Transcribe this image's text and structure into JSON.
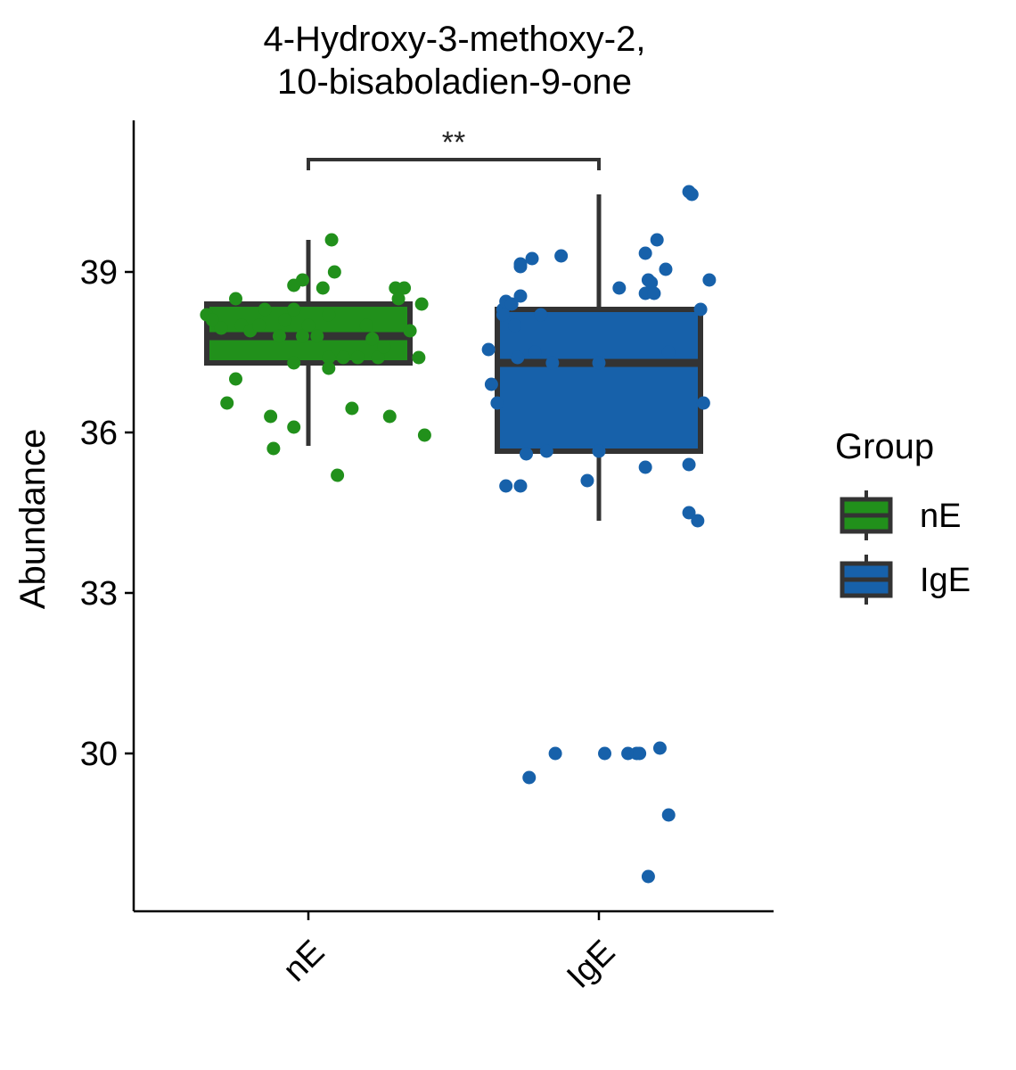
{
  "chart_data": {
    "type": "box",
    "title_lines": [
      "4-Hydroxy-3-methoxy-2,",
      "10-bisaboladien-9-one"
    ],
    "ylabel": "Abundance",
    "xlabel": "",
    "categories": [
      "nE",
      "IgE"
    ],
    "y_ticks": [
      30,
      33,
      36,
      39
    ],
    "ylim": [
      27.0,
      41.75
    ],
    "legend": {
      "title": "Group",
      "placement": "right",
      "entries": [
        {
          "label": "nE",
          "color": "#21901b"
        },
        {
          "label": "IgE",
          "color": "#1761aa"
        }
      ]
    },
    "significance": {
      "label": "**",
      "between": [
        "nE",
        "IgE"
      ],
      "y": 41.1
    },
    "series": [
      {
        "name": "nE",
        "color": "#21901b",
        "box": {
          "min": 35.75,
          "q1": 37.3,
          "median": 37.8,
          "q3": 38.4,
          "max": 39.6
        },
        "points": [
          [
            -0.35,
            38.2
          ],
          [
            -0.33,
            38.1
          ],
          [
            -0.3,
            37.95
          ],
          [
            -0.28,
            36.55
          ],
          [
            -0.25,
            37.0
          ],
          [
            -0.25,
            38.5
          ],
          [
            -0.23,
            38.0
          ],
          [
            -0.2,
            37.9
          ],
          [
            -0.17,
            38.0
          ],
          [
            -0.15,
            38.3
          ],
          [
            -0.13,
            36.3
          ],
          [
            -0.12,
            35.7
          ],
          [
            -0.1,
            37.8
          ],
          [
            -0.08,
            38.1
          ],
          [
            -0.05,
            36.1
          ],
          [
            -0.05,
            38.3
          ],
          [
            -0.05,
            37.3
          ],
          [
            -0.05,
            38.75
          ],
          [
            -0.02,
            37.8
          ],
          [
            -0.02,
            38.85
          ],
          [
            0.0,
            38.0
          ],
          [
            0.03,
            37.8
          ],
          [
            0.05,
            38.7
          ],
          [
            0.07,
            37.4
          ],
          [
            0.07,
            38.2
          ],
          [
            0.07,
            37.2
          ],
          [
            0.08,
            39.6
          ],
          [
            0.09,
            39.0
          ],
          [
            0.1,
            35.2
          ],
          [
            0.12,
            37.4
          ],
          [
            0.15,
            36.45
          ],
          [
            0.17,
            37.4
          ],
          [
            0.2,
            38.0
          ],
          [
            0.22,
            37.75
          ],
          [
            0.24,
            37.4
          ],
          [
            0.26,
            37.6
          ],
          [
            0.28,
            36.3
          ],
          [
            0.3,
            38.7
          ],
          [
            0.31,
            38.5
          ],
          [
            0.33,
            38.7
          ],
          [
            0.35,
            37.9
          ],
          [
            0.38,
            37.4
          ],
          [
            0.39,
            38.4
          ],
          [
            0.4,
            35.95
          ]
        ]
      },
      {
        "name": "IgE",
        "color": "#1761aa",
        "box": {
          "min": 34.35,
          "q1": 35.65,
          "median": 37.3,
          "q3": 38.3,
          "max": 40.45
        },
        "points": [
          [
            -0.38,
            37.55
          ],
          [
            -0.37,
            36.9
          ],
          [
            -0.35,
            36.55
          ],
          [
            -0.33,
            38.3
          ],
          [
            -0.33,
            38.2
          ],
          [
            -0.32,
            38.45
          ],
          [
            -0.32,
            35.0
          ],
          [
            -0.3,
            38.4
          ],
          [
            -0.29,
            38.0
          ],
          [
            -0.28,
            37.4
          ],
          [
            -0.27,
            38.55
          ],
          [
            -0.27,
            39.15
          ],
          [
            -0.27,
            39.1
          ],
          [
            -0.27,
            35.0
          ],
          [
            -0.25,
            35.6
          ],
          [
            -0.24,
            29.55
          ],
          [
            -0.23,
            39.25
          ],
          [
            -0.22,
            37.5
          ],
          [
            -0.2,
            38.2
          ],
          [
            -0.18,
            35.65
          ],
          [
            -0.16,
            37.3
          ],
          [
            -0.15,
            30.0
          ],
          [
            -0.13,
            39.3
          ],
          [
            -0.04,
            35.1
          ],
          [
            0.0,
            35.65
          ],
          [
            0.0,
            37.3
          ],
          [
            0.02,
            30.0
          ],
          [
            0.07,
            38.7
          ],
          [
            0.1,
            30.0
          ],
          [
            0.13,
            30.0
          ],
          [
            0.14,
            30.0
          ],
          [
            0.16,
            39.35
          ],
          [
            0.16,
            38.6
          ],
          [
            0.16,
            35.35
          ],
          [
            0.17,
            38.85
          ],
          [
            0.17,
            27.7
          ],
          [
            0.18,
            38.8
          ],
          [
            0.19,
            38.6
          ],
          [
            0.2,
            39.6
          ],
          [
            0.21,
            30.1
          ],
          [
            0.23,
            39.05
          ],
          [
            0.24,
            37.5
          ],
          [
            0.24,
            28.85
          ],
          [
            0.31,
            40.5
          ],
          [
            0.31,
            34.5
          ],
          [
            0.31,
            35.4
          ],
          [
            0.32,
            40.45
          ],
          [
            0.34,
            34.35
          ],
          [
            0.35,
            38.3
          ],
          [
            0.36,
            36.55
          ],
          [
            0.38,
            38.85
          ]
        ]
      }
    ]
  }
}
